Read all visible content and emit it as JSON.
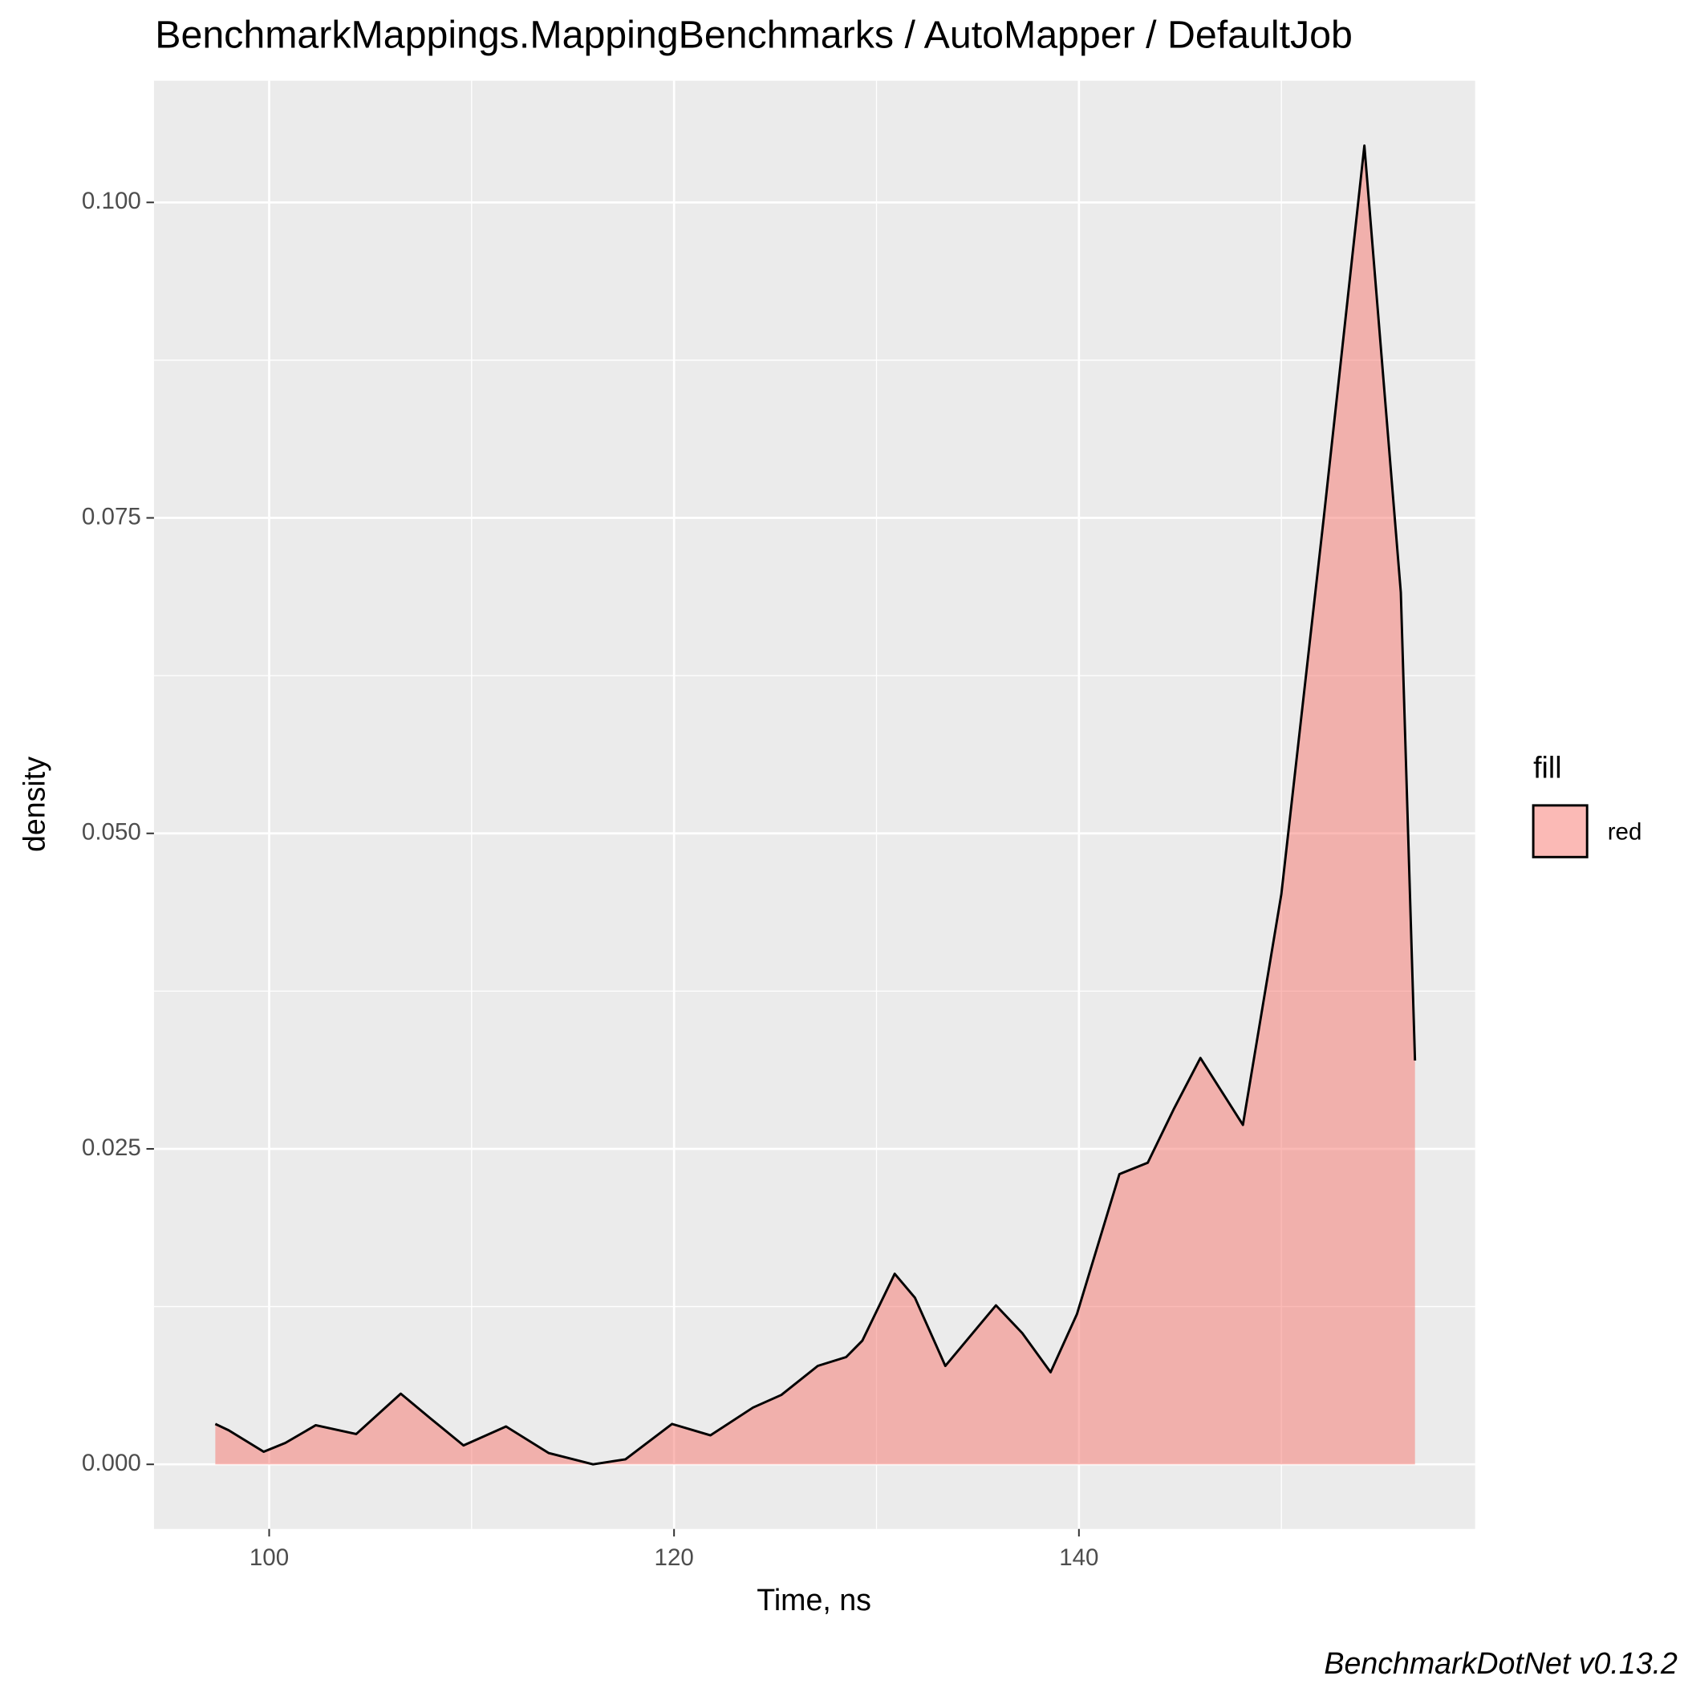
{
  "chart_data": {
    "type": "density",
    "title": "BenchmarkMappings.MappingBenchmarks / AutoMapper / DefaultJob",
    "x_label": "Time, ns",
    "y_label": "density",
    "caption": "BenchmarkDotNet v0.13.2",
    "legend_title": "fill",
    "series": [
      {
        "name": "red",
        "color": "#f8766d",
        "x": [
          97.34,
          98.0,
          99.73,
          100.8,
          102.3,
          104.3,
          106.5,
          108.0,
          109.6,
          111.7,
          113.8,
          116.0,
          117.6,
          119.9,
          121.8,
          123.9,
          125.3,
          127.1,
          128.5,
          129.3,
          130.9,
          131.9,
          133.4,
          135.9,
          137.2,
          138.6,
          139.9,
          142.0,
          143.4,
          144.7,
          146.0,
          148.1,
          150.0,
          152.1,
          154.1,
          155.9,
          156.6
        ],
        "values": [
          0.0032,
          0.0027,
          0.001,
          0.0017,
          0.0031,
          0.0024,
          0.0056,
          0.0036,
          0.0015,
          0.003,
          0.0009,
          0.0,
          0.0004,
          0.0032,
          0.0023,
          0.0045,
          0.0055,
          0.0078,
          0.0085,
          0.0098,
          0.0151,
          0.0132,
          0.0078,
          0.0126,
          0.0104,
          0.0073,
          0.0119,
          0.023,
          0.0239,
          0.0282,
          0.0322,
          0.0269,
          0.0452,
          0.0751,
          0.1045,
          0.0691,
          0.032
        ]
      }
    ],
    "xlim": [
      94.31,
      159.57
    ],
    "ylim": [
      -0.00512,
      0.10964
    ],
    "xticks": [
      100,
      120,
      140
    ],
    "yticks": [
      {
        "value": 0,
        "label": "0.000"
      },
      {
        "value": 0.025,
        "label": "0.025"
      },
      {
        "value": 0.05,
        "label": "0.050"
      },
      {
        "value": 0.075,
        "label": "0.075"
      },
      {
        "value": 0.1,
        "label": "0.100"
      }
    ],
    "x_minor_grid": [
      110,
      130,
      150
    ],
    "y_minor_grid": [
      0.0125,
      0.0375,
      0.0625,
      0.0875
    ],
    "grid": true,
    "legend_position": "right"
  }
}
